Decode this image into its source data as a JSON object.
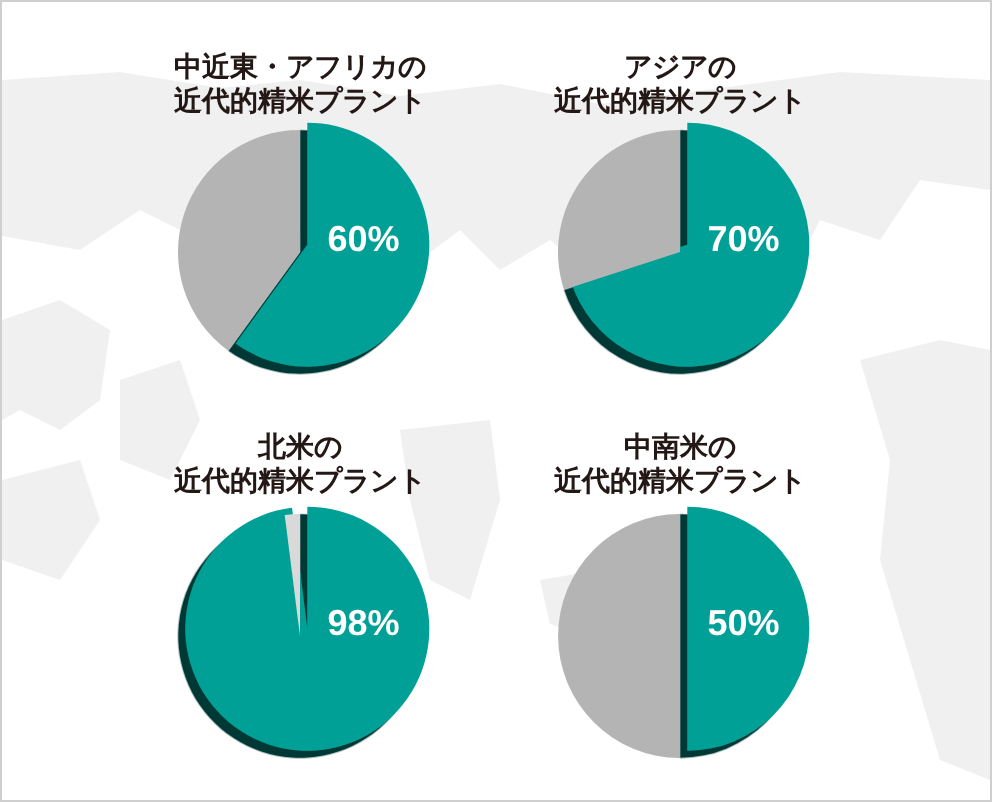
{
  "chart_data": [
    {
      "type": "pie",
      "title": "中近東・アフリカの近代的精米プラント",
      "categories": [
        null,
        null
      ],
      "values": [
        60,
        40
      ],
      "colors": [
        "#00a096",
        "#b4b4b4"
      ],
      "value_labels": [
        "60%",
        null
      ]
    },
    {
      "type": "pie",
      "title": "アジアの近代的精米プラント",
      "categories": [
        null,
        null
      ],
      "values": [
        70,
        30
      ],
      "colors": [
        "#00a096",
        "#b4b4b4"
      ],
      "value_labels": [
        "70%",
        null
      ]
    },
    {
      "type": "pie",
      "title": "北米の近代的精米プラント",
      "categories": [
        null,
        null
      ],
      "values": [
        98,
        2
      ],
      "colors": [
        "#00a096",
        "#d9d9d9"
      ],
      "value_labels": [
        "98%",
        null
      ]
    },
    {
      "type": "pie",
      "title": "中南米の近代的精米プラント",
      "categories": [
        null,
        null
      ],
      "values": [
        50,
        50
      ],
      "colors": [
        "#00a096",
        "#b4b4b4"
      ],
      "value_labels": [
        "50%",
        null
      ]
    }
  ]
}
